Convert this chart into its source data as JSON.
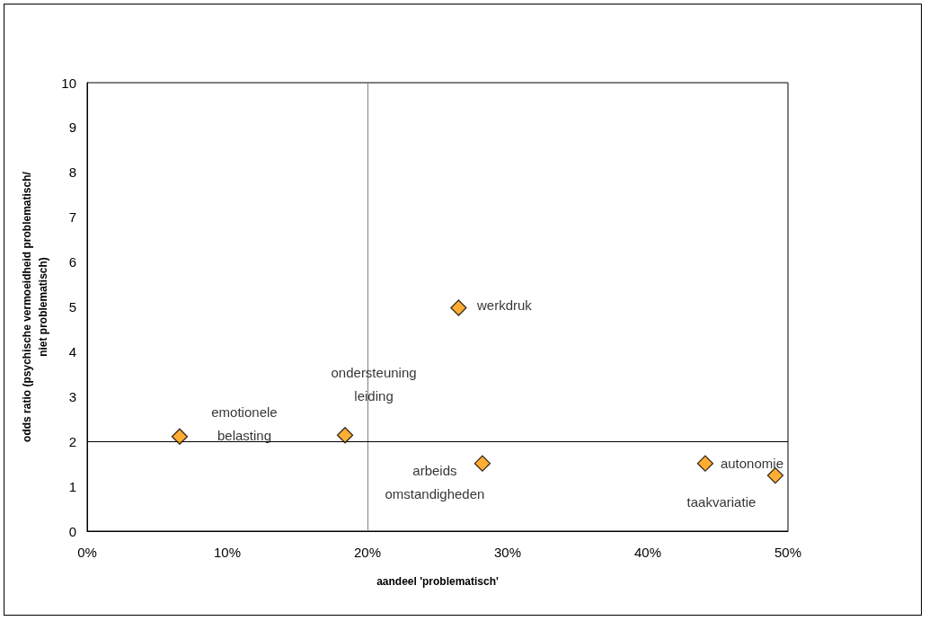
{
  "chart_data": {
    "type": "scatter",
    "xlabel": "aandeel 'problematisch'",
    "ylabel": "odds ratio (psychische vermoeidheid problematisch/\nniet problematisch)",
    "x": [
      6.6,
      18.4,
      26.5,
      28.2,
      44.1,
      49.1
    ],
    "values": [
      2.11,
      2.14,
      4.98,
      1.51,
      1.51,
      1.24
    ],
    "color": "#ff9900",
    "marker": "diamond",
    "xlim": [
      0,
      50
    ],
    "xticks": [
      {
        "value": 0,
        "label": "0%"
      },
      {
        "value": 10,
        "label": "10%"
      },
      {
        "value": 20,
        "label": "20%"
      },
      {
        "value": 30,
        "label": "30%"
      },
      {
        "value": 40,
        "label": "40%"
      },
      {
        "value": 50,
        "label": "50%"
      }
    ],
    "ylim": [
      0,
      10
    ],
    "yticks": [
      0,
      1,
      2,
      3,
      4,
      5,
      6,
      7,
      8,
      9,
      10
    ],
    "grid": false,
    "ref_lines": [
      {
        "axis": "x",
        "value": 20,
        "color": "#808080"
      },
      {
        "axis": "y",
        "value": 2,
        "color": "#000000"
      }
    ],
    "annotations": [
      {
        "text": "emotionele\nbelasting",
        "x": 6.6,
        "y": 2.11
      },
      {
        "text": "ondersteuning\nleiding",
        "x": 18.4,
        "y": 2.14
      },
      {
        "text": "werkdruk",
        "x": 26.5,
        "y": 4.98
      },
      {
        "text": "arbeids\nomstandigheden",
        "x": 28.2,
        "y": 1.51
      },
      {
        "text": "autonomie",
        "x": 44.1,
        "y": 1.51
      },
      {
        "text": "taakvariatie",
        "x": 49.1,
        "y": 1.24
      }
    ]
  }
}
